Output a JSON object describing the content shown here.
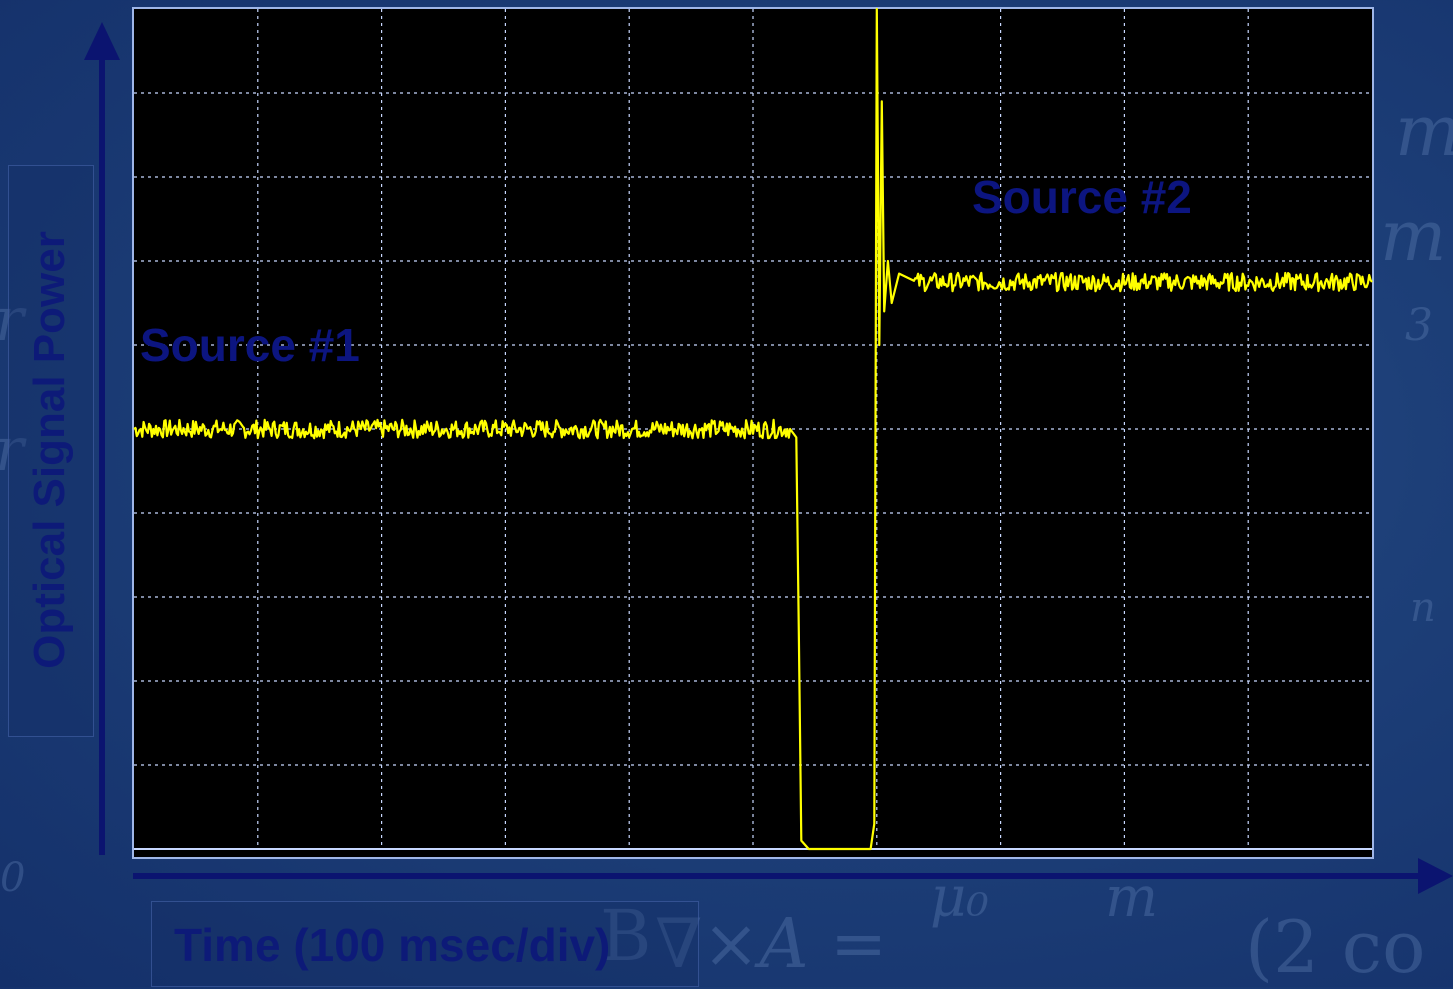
{
  "chart_data": {
    "type": "line",
    "title": "",
    "xlabel": "Time (100 msec/div)",
    "ylabel": "Optical Signal Power",
    "grid": true,
    "divisions": {
      "x": 10,
      "y": 10
    },
    "xlim": [
      0,
      10
    ],
    "ylim": [
      0,
      10
    ],
    "trace_color": "#ffff00",
    "screen_color": "#000000",
    "grid_color": "#c8d8ff",
    "series": [
      {
        "values": [
          {
            "x": 0.0,
            "y": 5.0
          },
          {
            "x": 5.3,
            "y": 5.0
          },
          {
            "x": 5.35,
            "y": 4.9
          },
          {
            "x": 5.37,
            "y": 2.6
          },
          {
            "x": 5.39,
            "y": 0.1
          },
          {
            "x": 5.45,
            "y": 0.0
          },
          {
            "x": 5.95,
            "y": 0.0
          },
          {
            "x": 5.98,
            "y": 0.3
          },
          {
            "x": 5.99,
            "y": 5.5
          },
          {
            "x": 6.0,
            "y": 10.0
          },
          {
            "x": 6.02,
            "y": 6.0
          },
          {
            "x": 6.04,
            "y": 8.9
          },
          {
            "x": 6.06,
            "y": 6.4
          },
          {
            "x": 6.09,
            "y": 7.0
          },
          {
            "x": 6.12,
            "y": 6.5
          },
          {
            "x": 6.18,
            "y": 6.85
          },
          {
            "x": 6.3,
            "y": 6.75
          },
          {
            "x": 10.0,
            "y": 6.75
          }
        ]
      }
    ],
    "annotations": [
      {
        "text": "Source #1",
        "x": 0.05,
        "y": 6.0
      },
      {
        "text": "Source #2",
        "x": 6.8,
        "y": 7.7
      }
    ]
  },
  "background_math": [
    "m",
    "m",
    "r",
    "r",
    "3",
    "n",
    "0",
    "B",
    "∇×A = ",
    "μ₀",
    "m",
    "(2 co"
  ]
}
